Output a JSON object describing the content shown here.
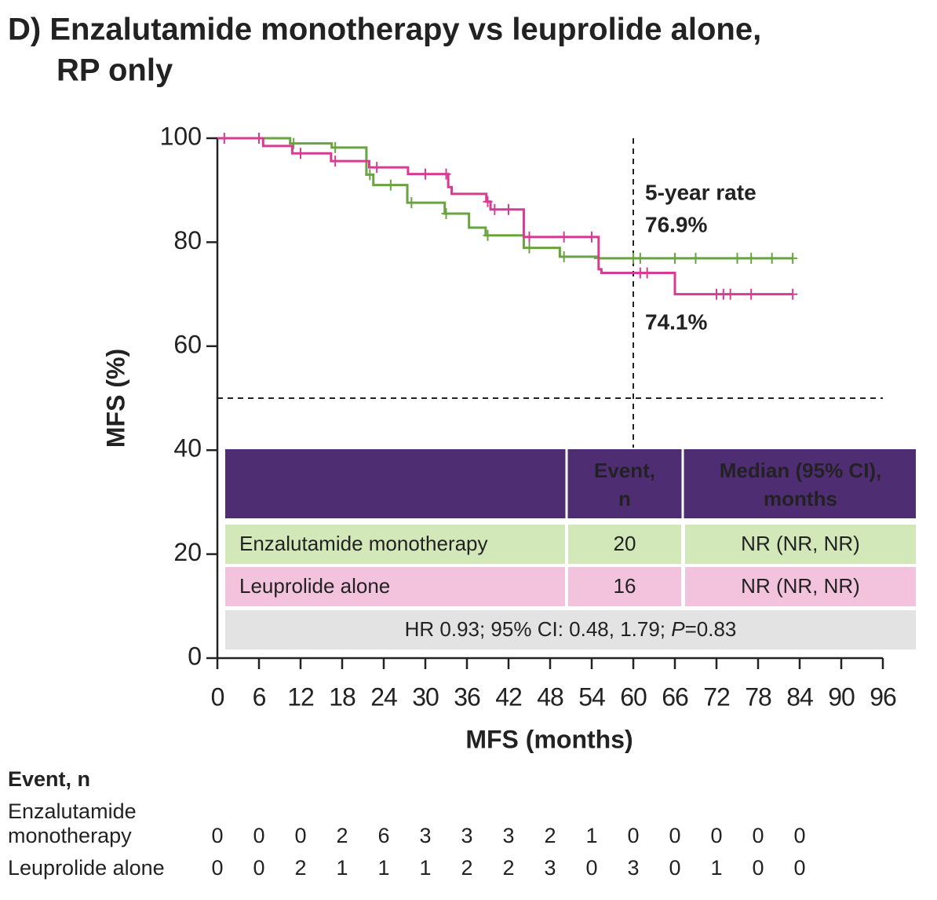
{
  "chart_data": {
    "type": "km",
    "title": [
      "D) Enzalutamide monotherapy vs leuprolide alone,",
      "RP only"
    ],
    "x_label": "MFS (months)",
    "y_label": "MFS (%)",
    "xlim": [
      0,
      96
    ],
    "ylim": [
      0,
      100
    ],
    "xticks": [
      0,
      6,
      12,
      18,
      24,
      30,
      36,
      42,
      48,
      54,
      60,
      66,
      72,
      78,
      84,
      90,
      96
    ],
    "yticks": [
      0,
      20,
      40,
      60,
      80,
      100
    ],
    "vlines": [
      60
    ],
    "hlines": [
      50
    ],
    "series": [
      {
        "name": "Enzalutamide monotherapy",
        "color": "#6aa341",
        "x": [
          0,
          10.5,
          16.5,
          21.5,
          22.5,
          27.4,
          32.8,
          36.3,
          38.7,
          44.2,
          49.4,
          55,
          83
        ],
        "y": [
          100,
          99,
          98.2,
          93,
          91,
          87.6,
          85.5,
          82.8,
          81.3,
          78.9,
          77.2,
          76.9,
          76.9
        ],
        "censored": [
          6,
          11,
          17,
          22,
          25,
          28,
          33,
          39,
          45,
          50,
          55,
          60,
          61,
          66,
          69,
          75,
          77,
          80,
          83
        ]
      },
      {
        "name": "Leuprolide alone",
        "color": "#d63c94",
        "x": [
          0,
          6.6,
          10.8,
          16.4,
          21.9,
          27.5,
          33.3,
          33.8,
          38.8,
          39.4,
          44.2,
          55,
          55.4,
          66,
          83
        ],
        "y": [
          100,
          98.5,
          97.1,
          95.6,
          94.4,
          93.1,
          90.6,
          89.3,
          87.8,
          86.3,
          81,
          74.8,
          74.1,
          70,
          70
        ],
        "censored": [
          1,
          6,
          12,
          17,
          23,
          30,
          33,
          39,
          40,
          42,
          45,
          50,
          54,
          61,
          62,
          72,
          73,
          74,
          77,
          83
        ]
      }
    ],
    "annotations": [
      "5-year rate",
      "76.9%",
      "74.1%"
    ],
    "inset_table": {
      "header": [
        [
          "Event,",
          "n"
        ],
        [
          "Median (95% CI),",
          "months"
        ]
      ],
      "rows": [
        [
          "Enzalutamide monotherapy",
          "20",
          "NR (NR, NR)"
        ],
        [
          "Leuprolide alone",
          "16",
          "NR (NR, NR)"
        ]
      ],
      "footer": [
        "HR 0.93; 95% CI: 0.48, 1.79; ",
        "P",
        "=0.83"
      ]
    },
    "event_table": {
      "title": "Event, n",
      "rows": [
        {
          "name": [
            "Enzalutamide",
            "monotherapy"
          ],
          "values": [
            0,
            0,
            0,
            2,
            6,
            3,
            3,
            3,
            2,
            1,
            0,
            0,
            0,
            0,
            0
          ]
        },
        {
          "name": [
            "Leuprolide alone"
          ],
          "values": [
            0,
            0,
            2,
            1,
            1,
            1,
            2,
            2,
            3,
            0,
            3,
            0,
            1,
            0,
            0
          ]
        }
      ]
    }
  }
}
